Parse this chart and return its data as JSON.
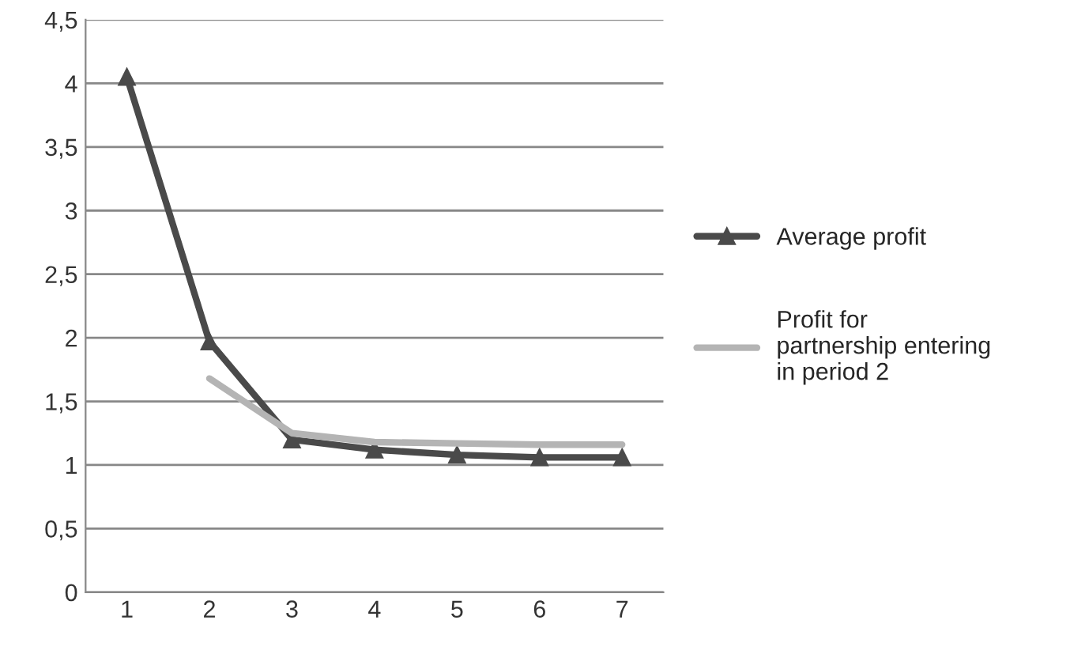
{
  "chart_data": {
    "type": "line",
    "categories": [
      "1",
      "2",
      "3",
      "4",
      "5",
      "6",
      "7"
    ],
    "series": [
      {
        "name": "Average profit",
        "color": "#4a4a4a",
        "marker": "triangle",
        "values": [
          4.05,
          1.97,
          1.2,
          1.12,
          1.08,
          1.06,
          1.06
        ]
      },
      {
        "name": "Profit for\npartnership entering\nin period 2",
        "color": "#b4b4b4",
        "marker": "none",
        "values": [
          null,
          1.68,
          1.25,
          1.18,
          1.17,
          1.16,
          1.16
        ]
      }
    ],
    "ylim": [
      0,
      4.5
    ],
    "yticks": [
      {
        "value": 0,
        "label": "0"
      },
      {
        "value": 0.5,
        "label": "0,5"
      },
      {
        "value": 1,
        "label": "1"
      },
      {
        "value": 1.5,
        "label": "1,5"
      },
      {
        "value": 2,
        "label": "2"
      },
      {
        "value": 2.5,
        "label": "2,5"
      },
      {
        "value": 3,
        "label": "3"
      },
      {
        "value": 3.5,
        "label": "3,5"
      },
      {
        "value": 4,
        "label": "4"
      },
      {
        "value": 4.5,
        "label": "4,5"
      }
    ],
    "grid": "y",
    "legend": "right",
    "line_style": "solid"
  }
}
